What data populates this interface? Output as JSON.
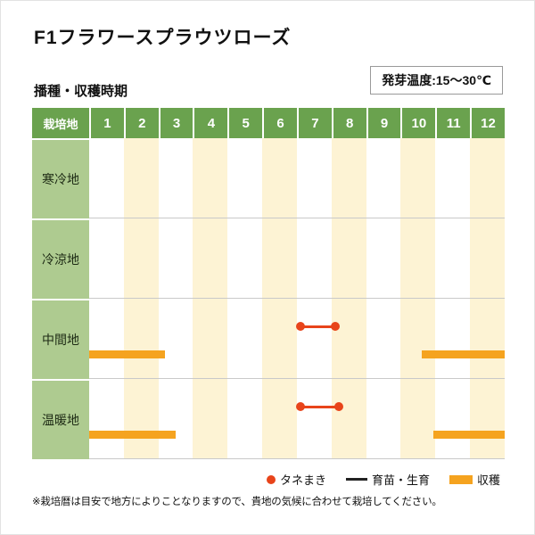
{
  "page": {
    "title": "F1フラワースプラウツローズ",
    "section_label": "播種・収穫時期",
    "germination_badge": "発芽温度:15〜30℃",
    "footnote": "※栽培暦は目安で地方によりことなりますので、貴地の気候に合わせて栽培してください。"
  },
  "chart_data": {
    "type": "table",
    "subtype": "planting-calendar-gantt",
    "title": "播種・収穫時期",
    "corner_label": "栽培地",
    "months": [
      "1",
      "2",
      "3",
      "4",
      "5",
      "6",
      "7",
      "8",
      "9",
      "10",
      "11",
      "12"
    ],
    "stripe_months": [
      2,
      4,
      6,
      8,
      10,
      12
    ],
    "rows": [
      {
        "label": "寒冷地",
        "sowing": null,
        "harvest": []
      },
      {
        "label": "冷涼地",
        "sowing": null,
        "harvest": []
      },
      {
        "label": "中間地",
        "sowing": {
          "start_month": 7.1,
          "end_month": 8.1
        },
        "harvest": [
          {
            "start_month": 1.0,
            "end_month": 3.2
          },
          {
            "start_month": 10.6,
            "end_month": 13.0
          }
        ]
      },
      {
        "label": "温暖地",
        "sowing": {
          "start_month": 7.1,
          "end_month": 8.2
        },
        "harvest": [
          {
            "start_month": 1.0,
            "end_month": 3.5
          },
          {
            "start_month": 10.95,
            "end_month": 13.0
          }
        ]
      }
    ],
    "legend": [
      {
        "icon": "red-dot",
        "label": "タネまき"
      },
      {
        "icon": "black-line",
        "label": "育苗・生育"
      },
      {
        "icon": "orange-bar",
        "label": "収穫"
      }
    ]
  },
  "colors": {
    "header_green": "#6aa24e",
    "label_green": "#aecb90",
    "stripe_cream": "#fdf3d4",
    "harvest_orange": "#f5a31f",
    "sowing_red": "#e8441a",
    "grid_gray": "#c9c9c9"
  }
}
